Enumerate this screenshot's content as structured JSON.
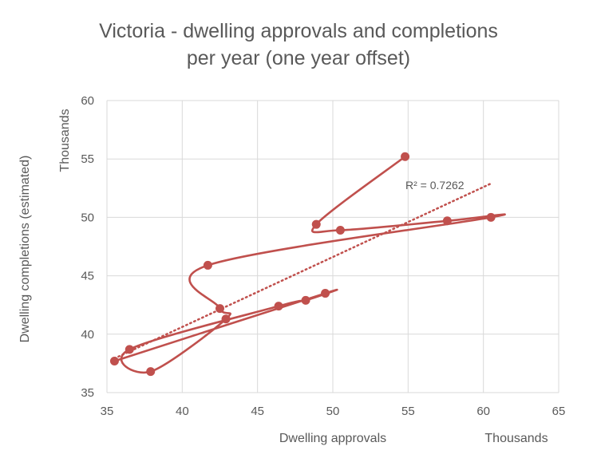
{
  "chart_data": {
    "type": "scatter",
    "title": "Victoria - dwelling approvals and completions per year (one year offset)",
    "title_lines": [
      "Victoria - dwelling approvals and completions",
      "per year (one year offset)"
    ],
    "xlabel": "Dwelling approvals",
    "xunit": "Thousands",
    "ylabel": "Dwelling completions (estimated)",
    "yunit": "Thousands",
    "xlim": [
      35,
      65
    ],
    "ylim": [
      35,
      60
    ],
    "xticks": [
      "35",
      "40",
      "45",
      "50",
      "55",
      "60",
      "65"
    ],
    "yticks": [
      "35",
      "40",
      "45",
      "50",
      "55",
      "60"
    ],
    "grid": true,
    "series_color": "#C0504D",
    "smoothed_line": true,
    "points": [
      {
        "x": 54.8,
        "y": 55.2
      },
      {
        "x": 48.9,
        "y": 49.4
      },
      {
        "x": 50.5,
        "y": 48.9
      },
      {
        "x": 57.6,
        "y": 49.7
      },
      {
        "x": 60.5,
        "y": 50.0
      },
      {
        "x": 41.7,
        "y": 45.9
      },
      {
        "x": 42.5,
        "y": 42.2
      },
      {
        "x": 42.9,
        "y": 41.3
      },
      {
        "x": 37.9,
        "y": 36.8
      },
      {
        "x": 36.5,
        "y": 38.7
      },
      {
        "x": 46.4,
        "y": 42.4
      },
      {
        "x": 48.2,
        "y": 42.9
      },
      {
        "x": 49.5,
        "y": 43.5
      },
      {
        "x": 35.5,
        "y": 37.7
      }
    ],
    "trendline": {
      "type": "linear",
      "r2_label": "R² = 0.7262"
    }
  }
}
